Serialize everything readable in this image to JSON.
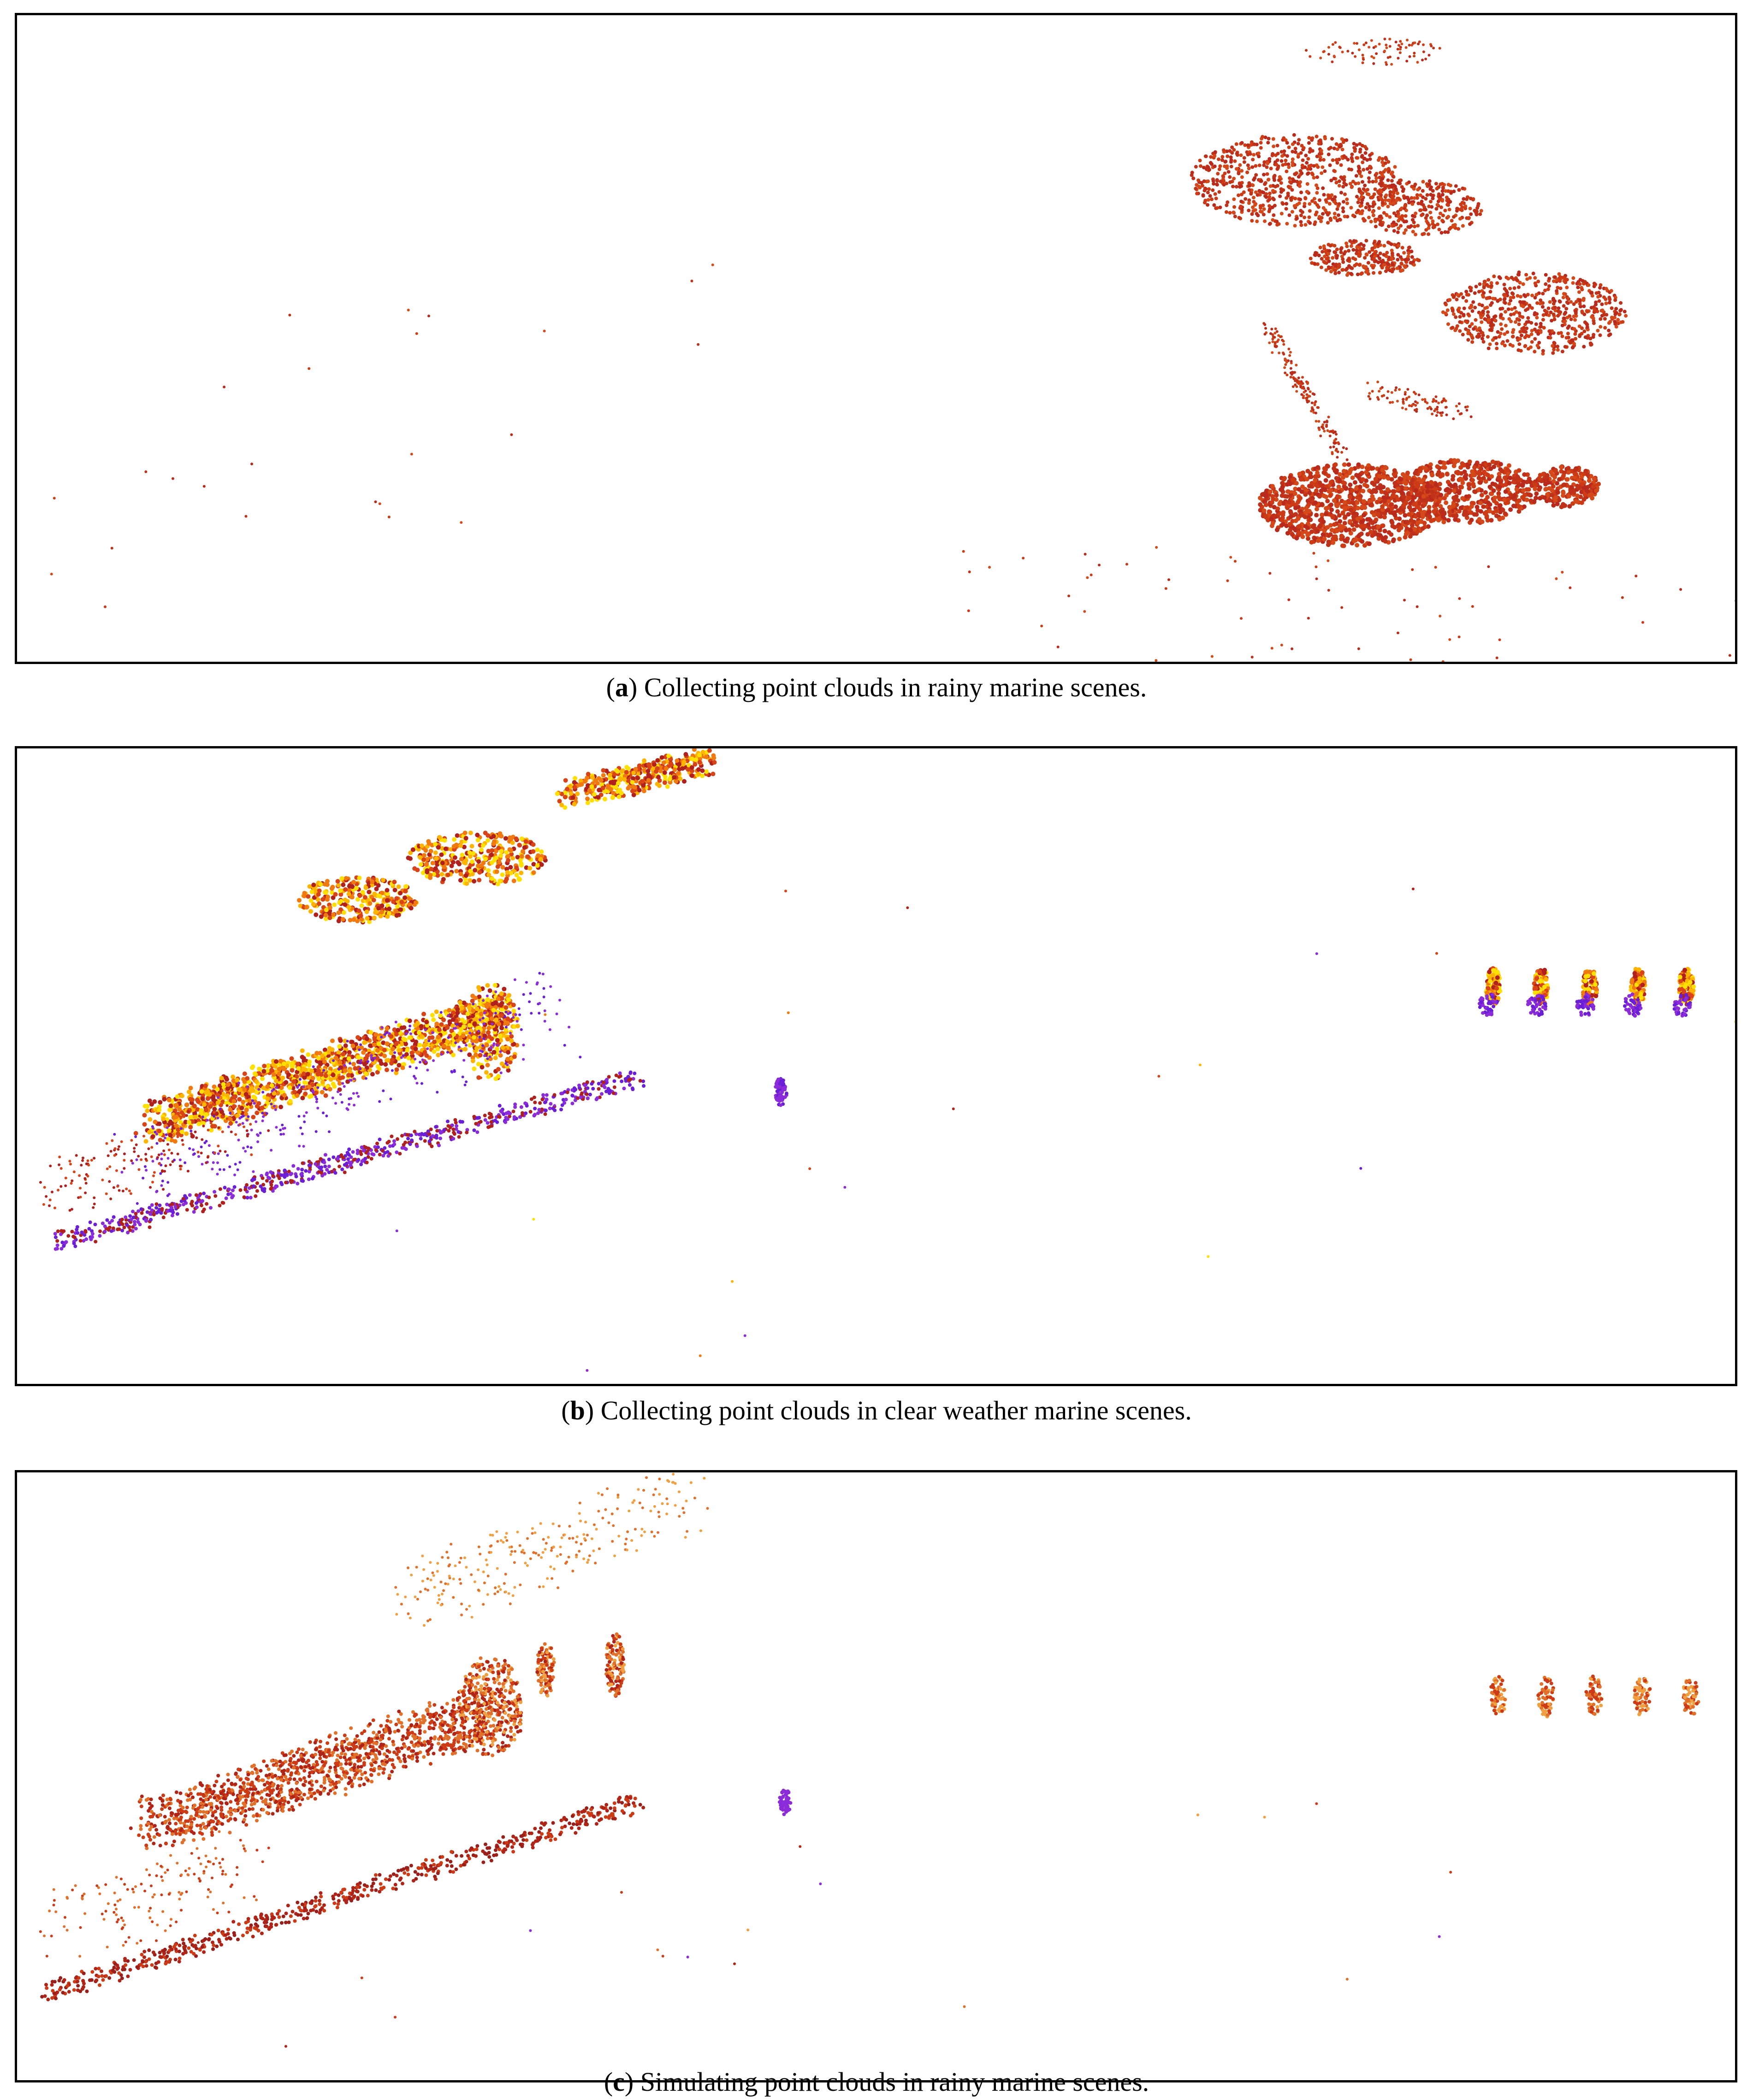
{
  "figure": {
    "panels": [
      {
        "id": "a",
        "label": "a",
        "caption": "Collecting point clouds in rainy marine scenes.",
        "palette": [
          "#c0311a",
          "#cc3a16",
          "#b92a1c",
          "#d5481a"
        ]
      },
      {
        "id": "b",
        "label": "b",
        "caption": "Collecting point clouds in clear weather marine scenes.",
        "palette": [
          "#ffe000",
          "#ffb400",
          "#f07a10",
          "#d84418",
          "#b0201c",
          "#8b2bd9",
          "#6a1ed6"
        ]
      },
      {
        "id": "c",
        "label": "c",
        "caption": "Simulating point clouds in rainy marine scenes.",
        "palette": [
          "#f0a040",
          "#e0702a",
          "#cc3a16",
          "#b02418",
          "#8b2bd9"
        ]
      }
    ]
  }
}
